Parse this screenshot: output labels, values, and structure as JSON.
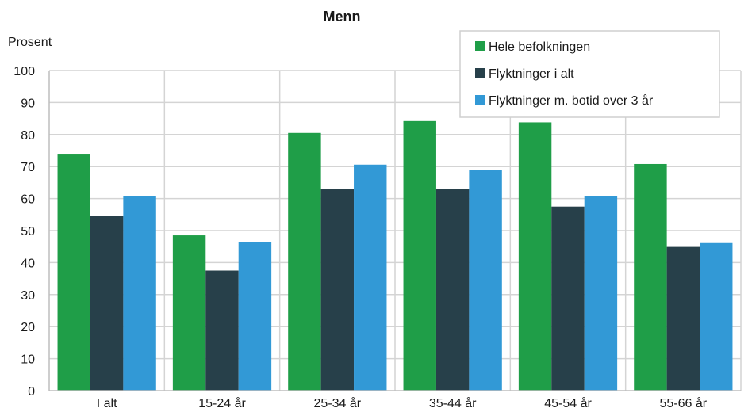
{
  "chart_data": {
    "type": "bar",
    "title": "Menn",
    "ylabel": "Prosent",
    "xlabel": "",
    "ylim": [
      0,
      100
    ],
    "yticks": [
      0,
      10,
      20,
      30,
      40,
      50,
      60,
      70,
      80,
      90,
      100
    ],
    "grid": true,
    "legend_position": "top-right",
    "categories": [
      "I alt",
      "15-24 år",
      "25-34 år",
      "35-44 år",
      "45-54 år",
      "55-66 år"
    ],
    "series": [
      {
        "name": "Hele befolkningen",
        "color": "#1f9e48",
        "values": [
          74,
          48.5,
          80.5,
          84.2,
          83.8,
          70.8
        ]
      },
      {
        "name": "Flyktninger i alt",
        "color": "#27404a",
        "values": [
          54.6,
          37.5,
          63.1,
          63.1,
          57.5,
          44.9
        ]
      },
      {
        "name": "Flyktninger m. botid over 3 år",
        "color": "#3299d6",
        "values": [
          60.8,
          46.3,
          70.6,
          69.0,
          60.8,
          46.1
        ]
      }
    ]
  }
}
